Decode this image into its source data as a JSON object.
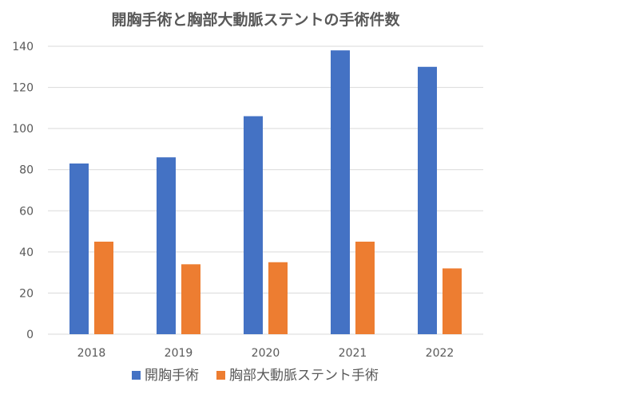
{
  "chart_data": {
    "type": "bar",
    "title": "開胸手術と胸部大動脈ステントの手術件数",
    "categories": [
      "2018",
      "2019",
      "2020",
      "2021",
      "2022"
    ],
    "series": [
      {
        "name": "開胸手術",
        "values": [
          83,
          86,
          106,
          138,
          130
        ],
        "color": "#4472C4"
      },
      {
        "name": "胸部大動脈ステント手術",
        "values": [
          45,
          34,
          35,
          45,
          32
        ],
        "color": "#ED7D31"
      }
    ],
    "ylim": [
      0,
      140
    ],
    "yticks": [
      0,
      20,
      40,
      60,
      80,
      100,
      120,
      140
    ],
    "xlabel": "",
    "ylabel": "",
    "grid": true,
    "legend_position": "bottom"
  }
}
